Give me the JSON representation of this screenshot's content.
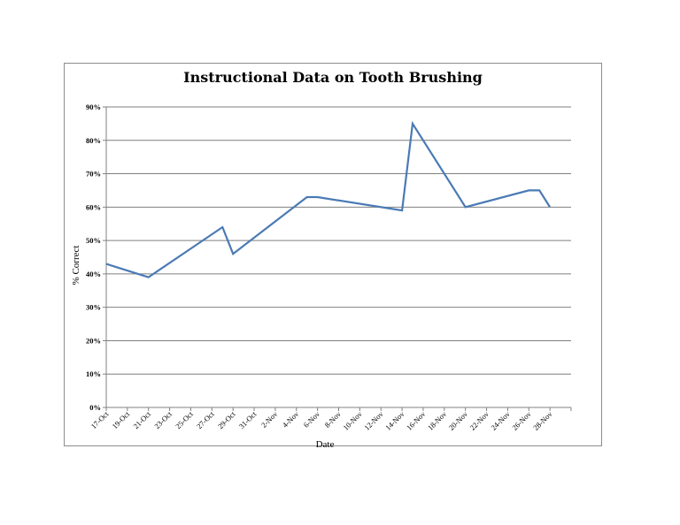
{
  "chart_data": {
    "type": "line",
    "title": "Instructional Data on Tooth Brushing",
    "xlabel": "Date",
    "ylabel": "% Correct",
    "ylim": [
      0,
      90
    ],
    "ytick_labels": [
      "0%",
      "10%",
      "20%",
      "30%",
      "40%",
      "50%",
      "60%",
      "70%",
      "80%",
      "90%"
    ],
    "xtick_labels": [
      "17-Oct",
      "19-Oct",
      "21-Oct",
      "23-Oct",
      "25-Oct",
      "27-Oct",
      "29-Oct",
      "31-Oct",
      "2-Nov",
      "4-Nov",
      "6-Nov",
      "8-Nov",
      "10-Nov",
      "12-Nov",
      "14-Nov",
      "16-Nov",
      "18-Nov",
      "20-Nov",
      "22-Nov",
      "24-Nov",
      "26-Nov",
      "28-Nov"
    ],
    "grid": true,
    "line_color": "#4a7ab5",
    "series": [
      {
        "x": [
          "17-Oct",
          "21-Oct",
          "28-Oct",
          "29-Oct",
          "5-Nov",
          "6-Nov",
          "14-Nov",
          "15-Nov",
          "20-Nov",
          "26-Nov",
          "27-Nov",
          "28-Nov"
        ],
        "values": [
          43,
          39,
          54,
          46,
          63,
          63,
          59,
          85,
          60,
          65,
          65,
          60
        ]
      }
    ]
  }
}
